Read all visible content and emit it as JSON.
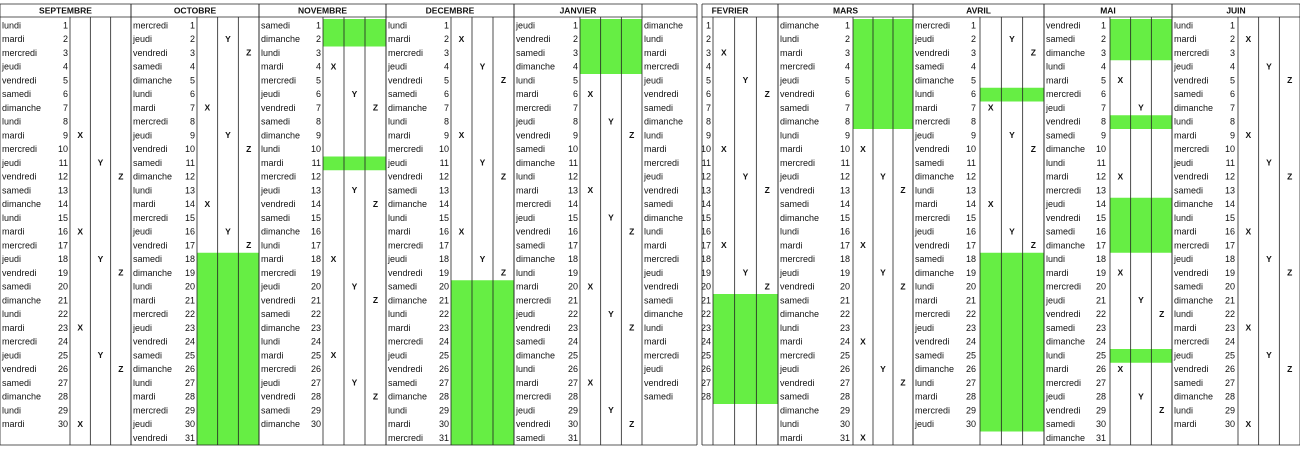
{
  "months": [
    {
      "name": "SEPTEMBRE",
      "green": [],
      "days": [
        [
          "lundi",
          1
        ],
        [
          "mardi",
          2
        ],
        [
          "mercredi",
          3
        ],
        [
          "jeudi",
          4
        ],
        [
          "vendredi",
          5
        ],
        [
          "samedi",
          6
        ],
        [
          "dimanche",
          7
        ],
        [
          "lundi",
          8
        ],
        [
          "mardi",
          9,
          "X"
        ],
        [
          "mercredi",
          10
        ],
        [
          "jeudi",
          11,
          "Y"
        ],
        [
          "vendredi",
          12,
          "Z"
        ],
        [
          "samedi",
          13
        ],
        [
          "dimanche",
          14
        ],
        [
          "lundi",
          15
        ],
        [
          "mardi",
          16,
          "X"
        ],
        [
          "mercredi",
          17
        ],
        [
          "jeudi",
          18,
          "Y"
        ],
        [
          "vendredi",
          19,
          "Z"
        ],
        [
          "samedi",
          20
        ],
        [
          "dimanche",
          21
        ],
        [
          "lundi",
          22
        ],
        [
          "mardi",
          23,
          "X"
        ],
        [
          "mercredi",
          24
        ],
        [
          "jeudi",
          25,
          "Y"
        ],
        [
          "vendredi",
          26,
          "Z"
        ],
        [
          "samedi",
          27
        ],
        [
          "dimanche",
          28
        ],
        [
          "lundi",
          29
        ],
        [
          "mardi",
          30,
          "X"
        ]
      ]
    },
    {
      "name": "OCTOBRE",
      "green": [
        [
          18,
          31
        ]
      ],
      "days": [
        [
          "mercredi",
          1
        ],
        [
          "jeudi",
          2,
          "Y"
        ],
        [
          "vendredi",
          3,
          "Z"
        ],
        [
          "samedi",
          4
        ],
        [
          "dimanche",
          5
        ],
        [
          "lundi",
          6
        ],
        [
          "mardi",
          7,
          "X"
        ],
        [
          "mercredi",
          8
        ],
        [
          "jeudi",
          9,
          "Y"
        ],
        [
          "vendredi",
          10,
          "Z"
        ],
        [
          "samedi",
          11
        ],
        [
          "dimanche",
          12
        ],
        [
          "lundi",
          13
        ],
        [
          "mardi",
          14,
          "X"
        ],
        [
          "mercredi",
          15
        ],
        [
          "jeudi",
          16,
          "Y"
        ],
        [
          "vendredi",
          17,
          "Z"
        ],
        [
          "samedi",
          18
        ],
        [
          "dimanche",
          19
        ],
        [
          "lundi",
          20
        ],
        [
          "mardi",
          21
        ],
        [
          "mercredi",
          22
        ],
        [
          "jeudi",
          23
        ],
        [
          "vendredi",
          24
        ],
        [
          "samedi",
          25
        ],
        [
          "dimanche",
          26
        ],
        [
          "lundi",
          27
        ],
        [
          "mardi",
          28
        ],
        [
          "mercredi",
          29
        ],
        [
          "jeudi",
          30
        ],
        [
          "vendredi",
          31
        ]
      ]
    },
    {
      "name": "NOVEMBRE",
      "green": [
        [
          1,
          2
        ],
        [
          11,
          11
        ]
      ],
      "days": [
        [
          "samedi",
          1
        ],
        [
          "dimanche",
          2
        ],
        [
          "lundi",
          3
        ],
        [
          "mardi",
          4,
          "X"
        ],
        [
          "mercredi",
          5
        ],
        [
          "jeudi",
          6,
          "Y"
        ],
        [
          "vendredi",
          7,
          "Z"
        ],
        [
          "samedi",
          8
        ],
        [
          "dimanche",
          9
        ],
        [
          "lundi",
          10
        ],
        [
          "mardi",
          11
        ],
        [
          "mercredi",
          12
        ],
        [
          "jeudi",
          13,
          "Y"
        ],
        [
          "vendredi",
          14,
          "Z"
        ],
        [
          "samedi",
          15
        ],
        [
          "dimanche",
          16
        ],
        [
          "lundi",
          17
        ],
        [
          "mardi",
          18,
          "X"
        ],
        [
          "mercredi",
          19
        ],
        [
          "jeudi",
          20,
          "Y"
        ],
        [
          "vendredi",
          21,
          "Z"
        ],
        [
          "samedi",
          22
        ],
        [
          "dimanche",
          23
        ],
        [
          "lundi",
          24
        ],
        [
          "mardi",
          25,
          "X"
        ],
        [
          "mercredi",
          26
        ],
        [
          "jeudi",
          27,
          "Y"
        ],
        [
          "vendredi",
          28,
          "Z"
        ],
        [
          "samedi",
          29
        ],
        [
          "dimanche",
          30
        ]
      ]
    },
    {
      "name": "DECEMBRE",
      "green": [
        [
          20,
          31
        ]
      ],
      "days": [
        [
          "lundi",
          1
        ],
        [
          "mardi",
          2,
          "X"
        ],
        [
          "mercredi",
          3
        ],
        [
          "jeudi",
          4,
          "Y"
        ],
        [
          "vendredi",
          5,
          "Z"
        ],
        [
          "samedi",
          6
        ],
        [
          "dimanche",
          7
        ],
        [
          "lundi",
          8
        ],
        [
          "mardi",
          9,
          "X"
        ],
        [
          "mercredi",
          10
        ],
        [
          "jeudi",
          11,
          "Y"
        ],
        [
          "vendredi",
          12,
          "Z"
        ],
        [
          "samedi",
          13
        ],
        [
          "dimanche",
          14
        ],
        [
          "lundi",
          15
        ],
        [
          "mardi",
          16,
          "X"
        ],
        [
          "mercredi",
          17
        ],
        [
          "jeudi",
          18,
          "Y"
        ],
        [
          "vendredi",
          19,
          "Z"
        ],
        [
          "samedi",
          20
        ],
        [
          "dimanche",
          21
        ],
        [
          "lundi",
          22
        ],
        [
          "mardi",
          23
        ],
        [
          "mercredi",
          24
        ],
        [
          "jeudi",
          25
        ],
        [
          "vendredi",
          26
        ],
        [
          "samedi",
          27
        ],
        [
          "dimanche",
          28
        ],
        [
          "lundi",
          29
        ],
        [
          "mardi",
          30
        ],
        [
          "mercredi",
          31
        ]
      ]
    },
    {
      "name": "JANVIER",
      "green": [
        [
          1,
          4
        ]
      ],
      "days": [
        [
          "jeudi",
          1
        ],
        [
          "vendredi",
          2
        ],
        [
          "samedi",
          3
        ],
        [
          "dimanche",
          4
        ],
        [
          "lundi",
          5
        ],
        [
          "mardi",
          6,
          "X"
        ],
        [
          "mercredi",
          7
        ],
        [
          "jeudi",
          8,
          "Y"
        ],
        [
          "vendredi",
          9,
          "Z"
        ],
        [
          "samedi",
          10
        ],
        [
          "dimanche",
          11
        ],
        [
          "lundi",
          12
        ],
        [
          "mardi",
          13,
          "X"
        ],
        [
          "mercredi",
          14
        ],
        [
          "jeudi",
          15,
          "Y"
        ],
        [
          "vendredi",
          16,
          "Z"
        ],
        [
          "samedi",
          17
        ],
        [
          "dimanche",
          18
        ],
        [
          "lundi",
          19
        ],
        [
          "mardi",
          20,
          "X"
        ],
        [
          "mercredi",
          21
        ],
        [
          "jeudi",
          22,
          "Y"
        ],
        [
          "vendredi",
          23,
          "Z"
        ],
        [
          "samedi",
          24
        ],
        [
          "dimanche",
          25
        ],
        [
          "lundi",
          26
        ],
        [
          "mardi",
          27,
          "X"
        ],
        [
          "mercredi",
          28
        ],
        [
          "jeudi",
          29,
          "Y"
        ],
        [
          "vendredi",
          30,
          "Z"
        ],
        [
          "samedi",
          31
        ]
      ]
    },
    {
      "name": "FEVRIER",
      "green": [
        [
          21,
          28
        ]
      ],
      "days": [
        [
          "dimanche",
          1
        ],
        [
          "lundi",
          2
        ],
        [
          "mardi",
          3,
          "X"
        ],
        [
          "mercredi",
          4
        ],
        [
          "jeudi",
          5,
          "Y"
        ],
        [
          "vendredi",
          6,
          "Z"
        ],
        [
          "samedi",
          7
        ],
        [
          "dimanche",
          8
        ],
        [
          "lundi",
          9
        ],
        [
          "mardi",
          10,
          "X"
        ],
        [
          "mercredi",
          11
        ],
        [
          "jeudi",
          12,
          "Y"
        ],
        [
          "vendredi",
          13,
          "Z"
        ],
        [
          "samedi",
          14
        ],
        [
          "dimanche",
          15
        ],
        [
          "lundi",
          16
        ],
        [
          "mardi",
          17,
          "X"
        ],
        [
          "mercredi",
          18
        ],
        [
          "jeudi",
          19,
          "Y"
        ],
        [
          "vendredi",
          20,
          "Z"
        ],
        [
          "samedi",
          21
        ],
        [
          "dimanche",
          22
        ],
        [
          "lundi",
          23
        ],
        [
          "mardi",
          24
        ],
        [
          "mercredi",
          25
        ],
        [
          "jeudi",
          26
        ],
        [
          "vendredi",
          27
        ],
        [
          "samedi",
          28
        ]
      ]
    },
    {
      "name": "MARS",
      "green": [
        [
          1,
          8
        ]
      ],
      "days": [
        [
          "dimanche",
          1
        ],
        [
          "lundi",
          2
        ],
        [
          "mardi",
          3
        ],
        [
          "mercredi",
          4
        ],
        [
          "jeudi",
          5
        ],
        [
          "vendredi",
          6
        ],
        [
          "samedi",
          7
        ],
        [
          "dimanche",
          8
        ],
        [
          "lundi",
          9
        ],
        [
          "mardi",
          10,
          "X"
        ],
        [
          "mercredi",
          11
        ],
        [
          "jeudi",
          12,
          "Y"
        ],
        [
          "vendredi",
          13,
          "Z"
        ],
        [
          "samedi",
          14
        ],
        [
          "dimanche",
          15
        ],
        [
          "lundi",
          16
        ],
        [
          "mardi",
          17,
          "X"
        ],
        [
          "mercredi",
          18
        ],
        [
          "jeudi",
          19,
          "Y"
        ],
        [
          "vendredi",
          20,
          "Z"
        ],
        [
          "samedi",
          21
        ],
        [
          "dimanche",
          22
        ],
        [
          "lundi",
          23
        ],
        [
          "mardi",
          24,
          "X"
        ],
        [
          "mercredi",
          25
        ],
        [
          "jeudi",
          26,
          "Y"
        ],
        [
          "vendredi",
          27,
          "Z"
        ],
        [
          "samedi",
          28
        ],
        [
          "dimanche",
          29
        ],
        [
          "lundi",
          30
        ],
        [
          "mardi",
          31,
          "X"
        ]
      ]
    },
    {
      "name": "AVRIL",
      "green": [
        [
          6,
          6
        ],
        [
          18,
          30
        ]
      ],
      "days": [
        [
          "mercredi",
          1
        ],
        [
          "jeudi",
          2,
          "Y"
        ],
        [
          "vendredi",
          3,
          "Z"
        ],
        [
          "samedi",
          4
        ],
        [
          "dimanche",
          5
        ],
        [
          "lundi",
          6
        ],
        [
          "mardi",
          7,
          "X"
        ],
        [
          "mercredi",
          8
        ],
        [
          "jeudi",
          9,
          "Y"
        ],
        [
          "vendredi",
          10,
          "Z"
        ],
        [
          "samedi",
          11
        ],
        [
          "dimanche",
          12
        ],
        [
          "lundi",
          13
        ],
        [
          "mardi",
          14,
          "X"
        ],
        [
          "mercredi",
          15
        ],
        [
          "jeudi",
          16,
          "Y"
        ],
        [
          "vendredi",
          17,
          "Z"
        ],
        [
          "samedi",
          18
        ],
        [
          "dimanche",
          19
        ],
        [
          "lundi",
          20
        ],
        [
          "mardi",
          21
        ],
        [
          "mercredi",
          22
        ],
        [
          "jeudi",
          23
        ],
        [
          "vendredi",
          24
        ],
        [
          "samedi",
          25
        ],
        [
          "dimanche",
          26
        ],
        [
          "lundi",
          27
        ],
        [
          "mardi",
          28
        ],
        [
          "mercredi",
          29
        ],
        [
          "jeudi",
          30
        ]
      ]
    },
    {
      "name": "MAI",
      "green": [
        [
          1,
          3
        ],
        [
          8,
          8
        ],
        [
          14,
          17
        ],
        [
          25,
          25
        ]
      ],
      "days": [
        [
          "vendredi",
          1
        ],
        [
          "samedi",
          2
        ],
        [
          "dimanche",
          3
        ],
        [
          "lundi",
          4
        ],
        [
          "mardi",
          5,
          "X"
        ],
        [
          "mercredi",
          6
        ],
        [
          "jeudi",
          7,
          "Y"
        ],
        [
          "vendredi",
          8
        ],
        [
          "samedi",
          9
        ],
        [
          "dimanche",
          10
        ],
        [
          "lundi",
          11
        ],
        [
          "mardi",
          12,
          "X"
        ],
        [
          "mercredi",
          13
        ],
        [
          "jeudi",
          14
        ],
        [
          "vendredi",
          15
        ],
        [
          "samedi",
          16
        ],
        [
          "dimanche",
          17
        ],
        [
          "lundi",
          18
        ],
        [
          "mardi",
          19,
          "X"
        ],
        [
          "mercredi",
          20
        ],
        [
          "jeudi",
          21,
          "Y"
        ],
        [
          "vendredi",
          22,
          "Z"
        ],
        [
          "samedi",
          23
        ],
        [
          "dimanche",
          24
        ],
        [
          "lundi",
          25
        ],
        [
          "mardi",
          26,
          "X"
        ],
        [
          "mercredi",
          27
        ],
        [
          "jeudi",
          28,
          "Y"
        ],
        [
          "vendredi",
          29,
          "Z"
        ],
        [
          "samedi",
          30
        ],
        [
          "dimanche",
          31
        ]
      ]
    },
    {
      "name": "JUIN",
      "green": [],
      "days": [
        [
          "lundi",
          1
        ],
        [
          "mardi",
          2,
          "X"
        ],
        [
          "mercredi",
          3
        ],
        [
          "jeudi",
          4,
          "Y"
        ],
        [
          "vendredi",
          5,
          "Z"
        ],
        [
          "samedi",
          6
        ],
        [
          "dimanche",
          7
        ],
        [
          "lundi",
          8
        ],
        [
          "mardi",
          9,
          "X"
        ],
        [
          "mercredi",
          10
        ],
        [
          "jeudi",
          11,
          "Y"
        ],
        [
          "vendredi",
          12,
          "Z"
        ],
        [
          "samedi",
          13
        ],
        [
          "dimanche",
          14
        ],
        [
          "lundi",
          15
        ],
        [
          "mardi",
          16,
          "X"
        ],
        [
          "mercredi",
          17
        ],
        [
          "jeudi",
          18,
          "Y"
        ],
        [
          "vendredi",
          19,
          "Z"
        ],
        [
          "samedi",
          20
        ],
        [
          "dimanche",
          21
        ],
        [
          "lundi",
          22
        ],
        [
          "mardi",
          23,
          "X"
        ],
        [
          "mercredi",
          24
        ],
        [
          "jeudi",
          25,
          "Y"
        ],
        [
          "vendredi",
          26,
          "Z"
        ],
        [
          "samedi",
          27
        ],
        [
          "dimanche",
          28
        ],
        [
          "lundi",
          29
        ],
        [
          "mardi",
          30,
          "X"
        ]
      ]
    }
  ]
}
